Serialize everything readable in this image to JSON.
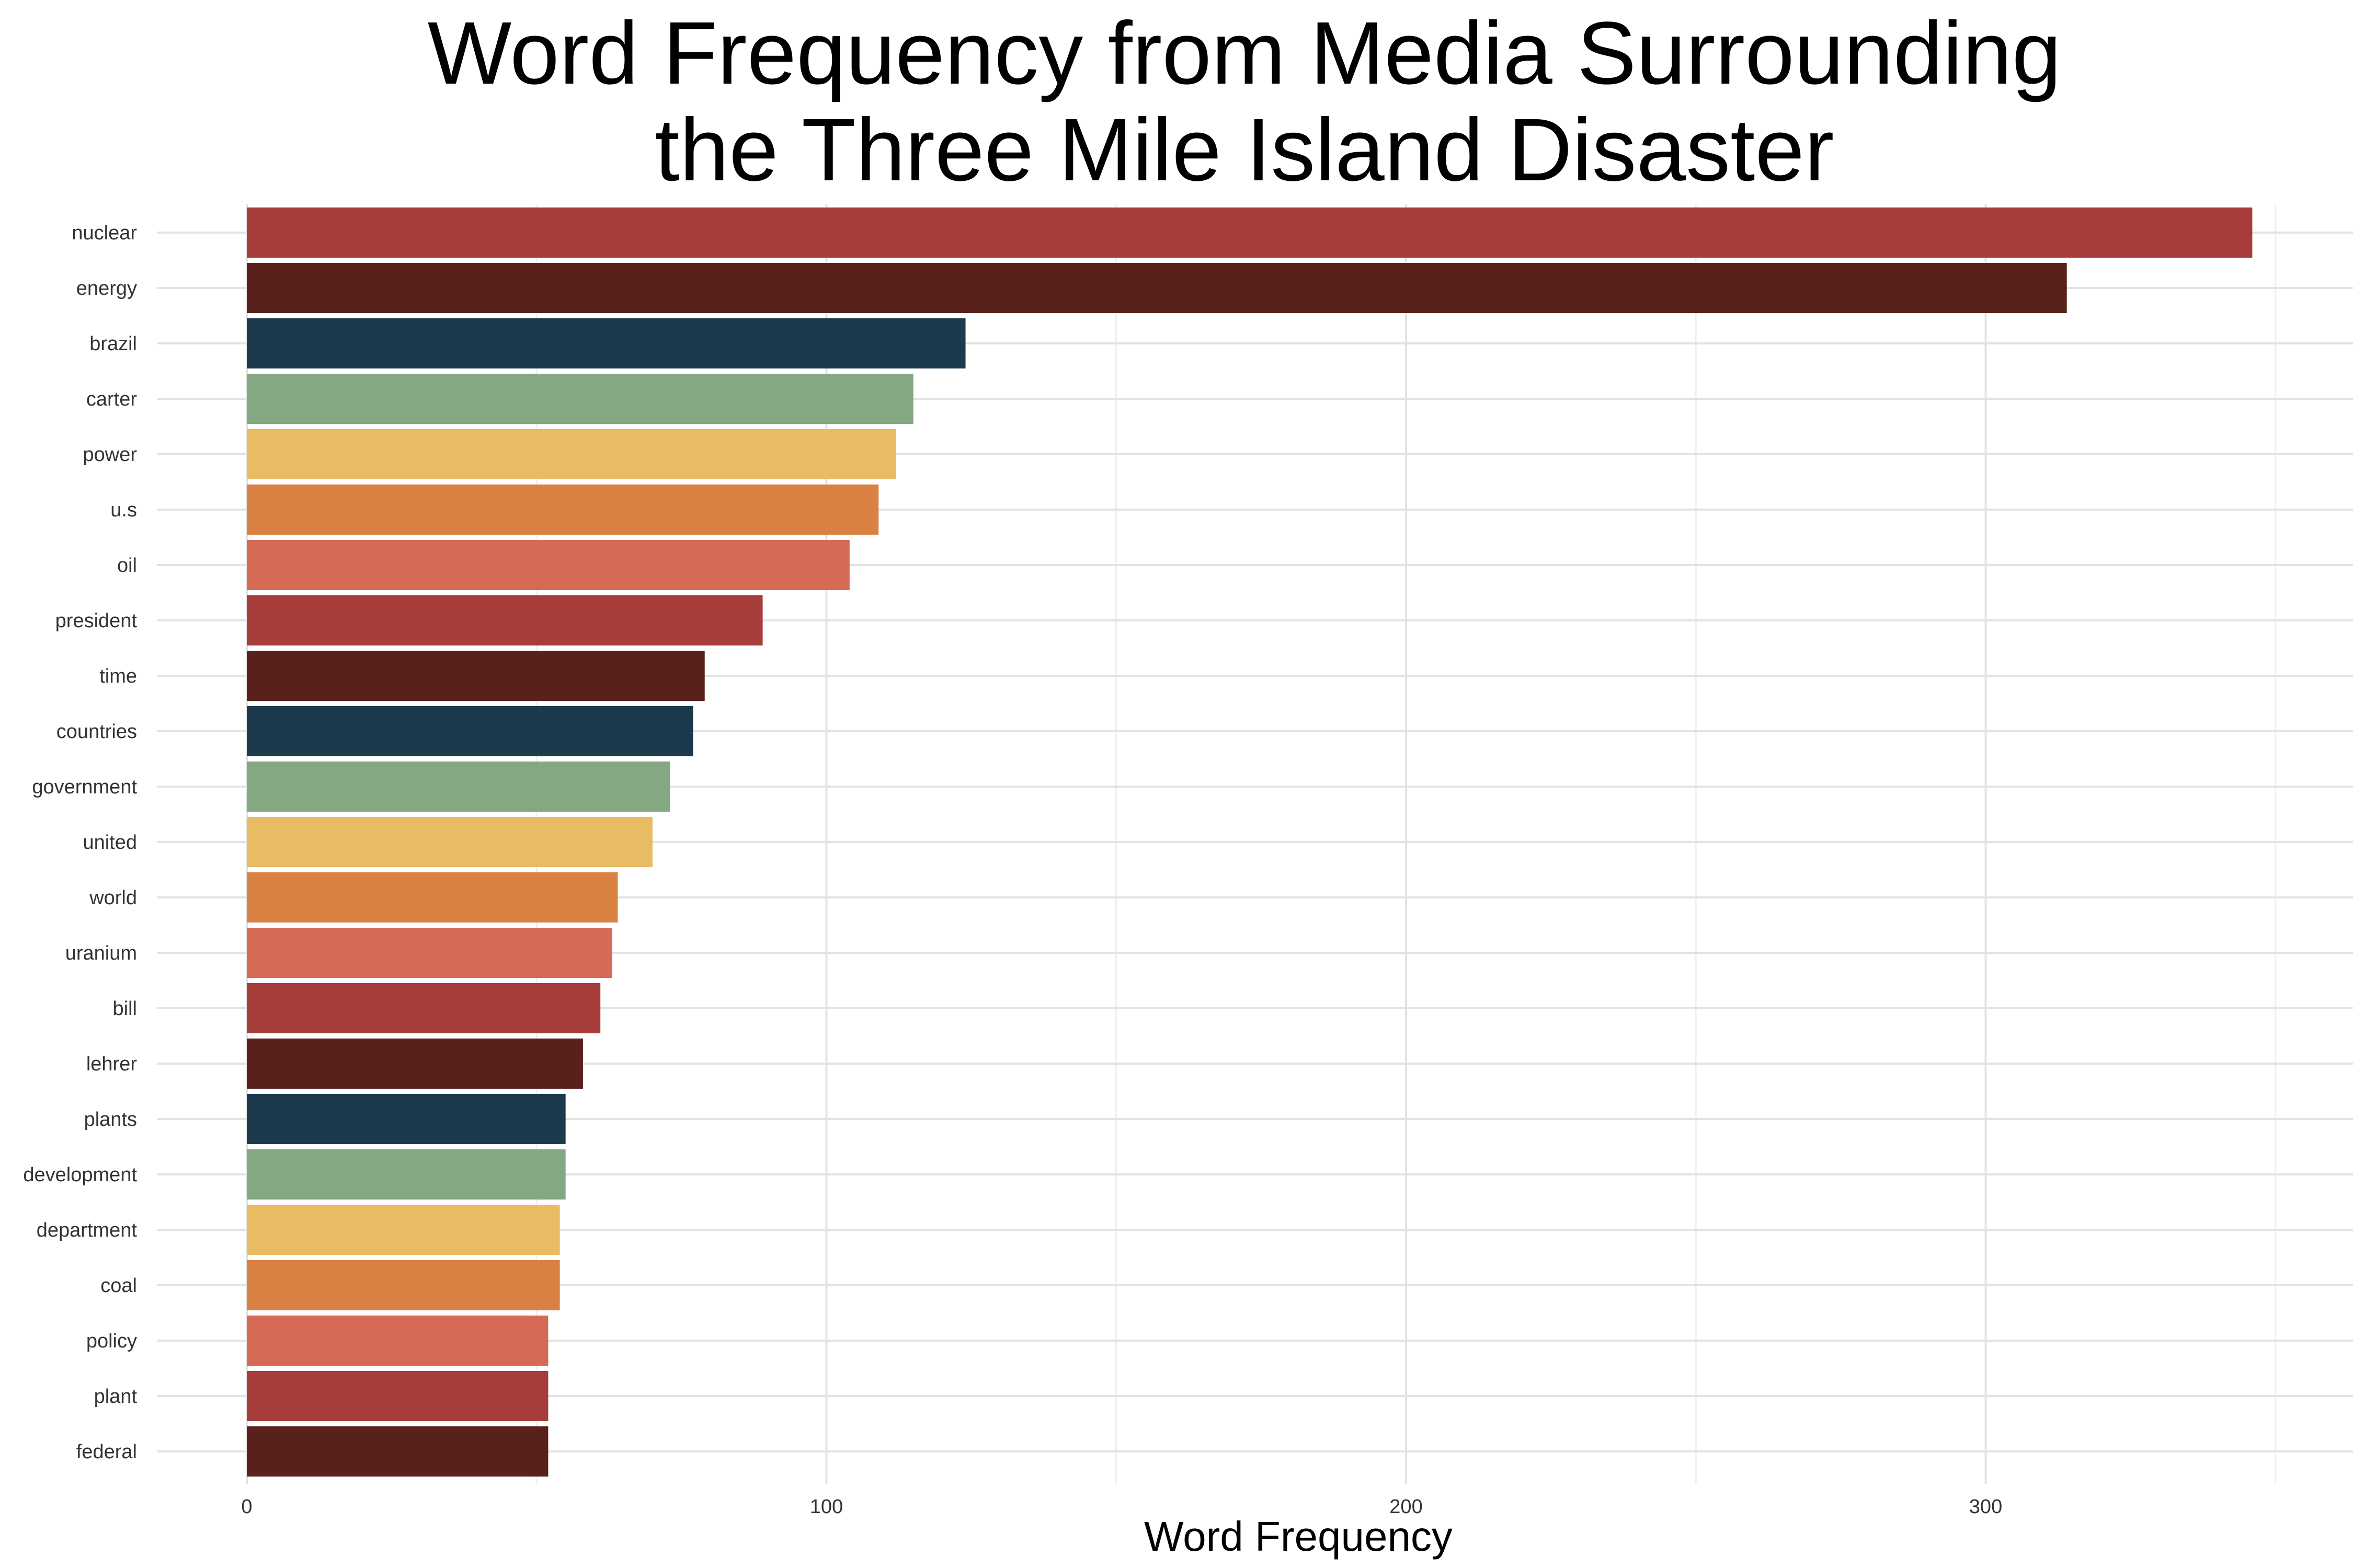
{
  "chart_data": {
    "type": "bar",
    "orientation": "horizontal",
    "title_lines": [
      "Word Frequency from Media Surrounding",
      "the Three Mile Island Disaster"
    ],
    "xlabel": "Word Frequency",
    "ylabel": "",
    "xlim": [
      0,
      360
    ],
    "x_ticks": [
      0,
      100,
      200,
      300
    ],
    "grid": true,
    "legend": "none",
    "categories": [
      "nuclear",
      "energy",
      "brazil",
      "carter",
      "power",
      "u.s",
      "oil",
      "president",
      "time",
      "countries",
      "government",
      "united",
      "world",
      "uranium",
      "bill",
      "lehrer",
      "plants",
      "development",
      "department",
      "coal",
      "policy",
      "plant",
      "federal"
    ],
    "values": [
      346,
      314,
      124,
      115,
      112,
      109,
      104,
      89,
      79,
      77,
      73,
      70,
      64,
      63,
      61,
      58,
      55,
      55,
      54,
      54,
      52,
      52,
      52
    ],
    "colors": [
      "#a63d3a",
      "#58211b",
      "#1d3a4d",
      "#84a882",
      "#e8bc62",
      "#d98142",
      "#d66a56"
    ]
  }
}
